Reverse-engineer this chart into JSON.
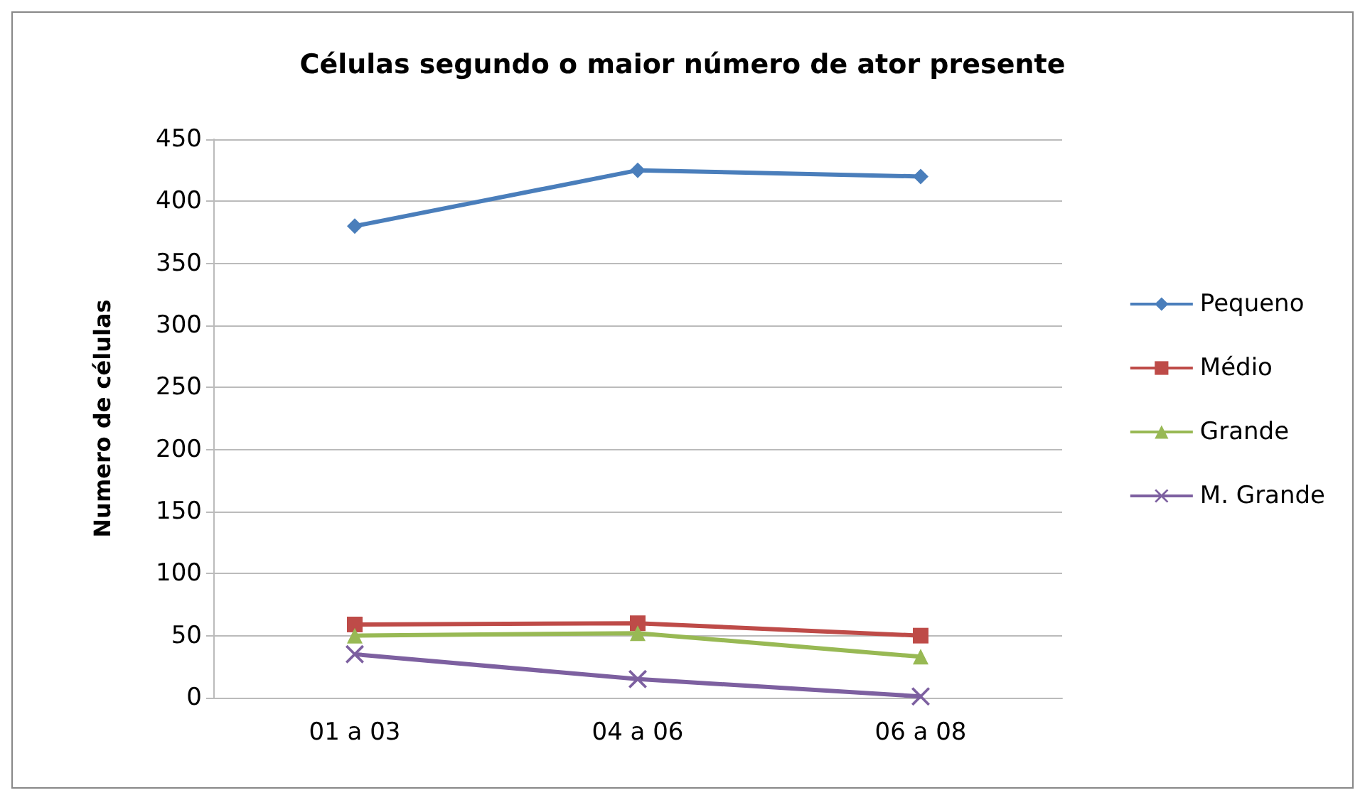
{
  "chart_data": {
    "type": "line",
    "title": "Células segundo o maior número de ator presente",
    "ylabel": "Numero de células",
    "categories": [
      "01 a 03",
      "04 a 06",
      "06 a 08"
    ],
    "series": [
      {
        "name": "Pequeno",
        "color": "#4a7ebb",
        "marker": "diamond",
        "values": [
          380,
          425,
          420
        ]
      },
      {
        "name": "Médio",
        "color": "#be4b48",
        "marker": "square",
        "values": [
          59,
          60,
          50
        ]
      },
      {
        "name": "Grande",
        "color": "#98b954",
        "marker": "triangle",
        "values": [
          50,
          52,
          33
        ]
      },
      {
        "name": "M. Grande",
        "color": "#7d60a0",
        "marker": "cross",
        "values": [
          35,
          15,
          1
        ]
      }
    ],
    "ylim": [
      0,
      450
    ],
    "yticks": [
      0,
      50,
      100,
      150,
      200,
      250,
      300,
      350,
      400,
      450
    ],
    "grid": "y",
    "legend": "right"
  }
}
